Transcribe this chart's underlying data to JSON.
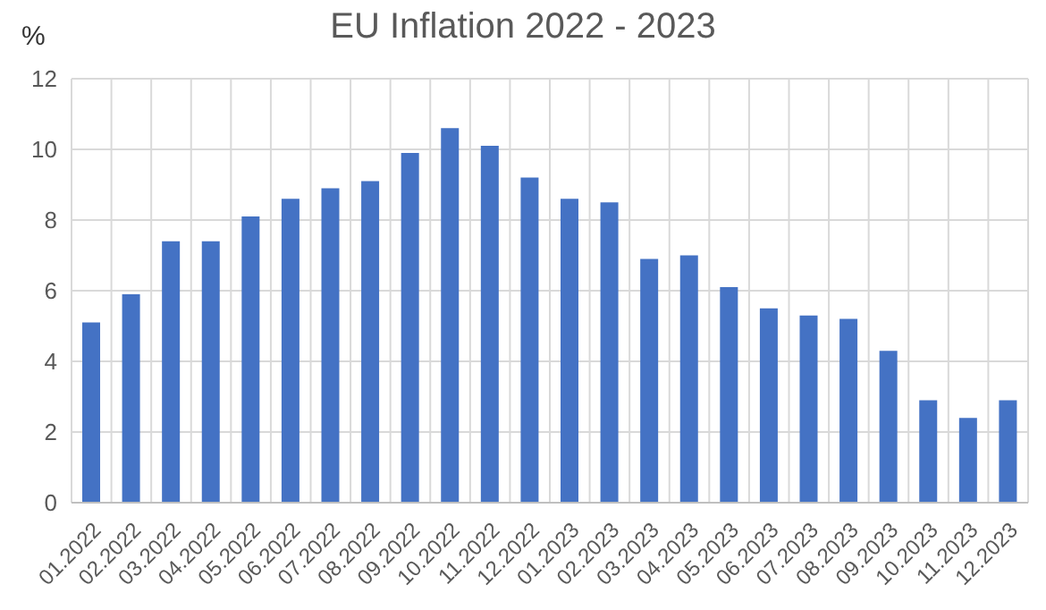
{
  "chart_data": {
    "type": "bar",
    "title": "EU Inflation 2022 - 2023",
    "ylabel": "%",
    "categories": [
      "01.2022",
      "02.2022",
      "03.2022",
      "04.2022",
      "05.2022",
      "06.2022",
      "07.2022",
      "08.2022",
      "09.2022",
      "10.2022",
      "11.2022",
      "12.2022",
      "01.2023",
      "02.2023",
      "03.2023",
      "04.2023",
      "05.2023",
      "06.2023",
      "07.2023",
      "08.2023",
      "09.2023",
      "10.2023",
      "11.2023",
      "12.2023"
    ],
    "values": [
      5.1,
      5.9,
      7.4,
      7.4,
      8.1,
      8.6,
      8.9,
      9.1,
      9.9,
      10.6,
      10.1,
      9.2,
      8.6,
      8.5,
      6.9,
      7.0,
      6.1,
      5.5,
      5.3,
      5.2,
      4.3,
      2.9,
      2.4,
      2.9
    ],
    "color": "#4472c4",
    "ylim": [
      0,
      12
    ],
    "yticks": [
      0,
      2,
      4,
      6,
      8,
      10,
      12
    ],
    "grid": true
  }
}
